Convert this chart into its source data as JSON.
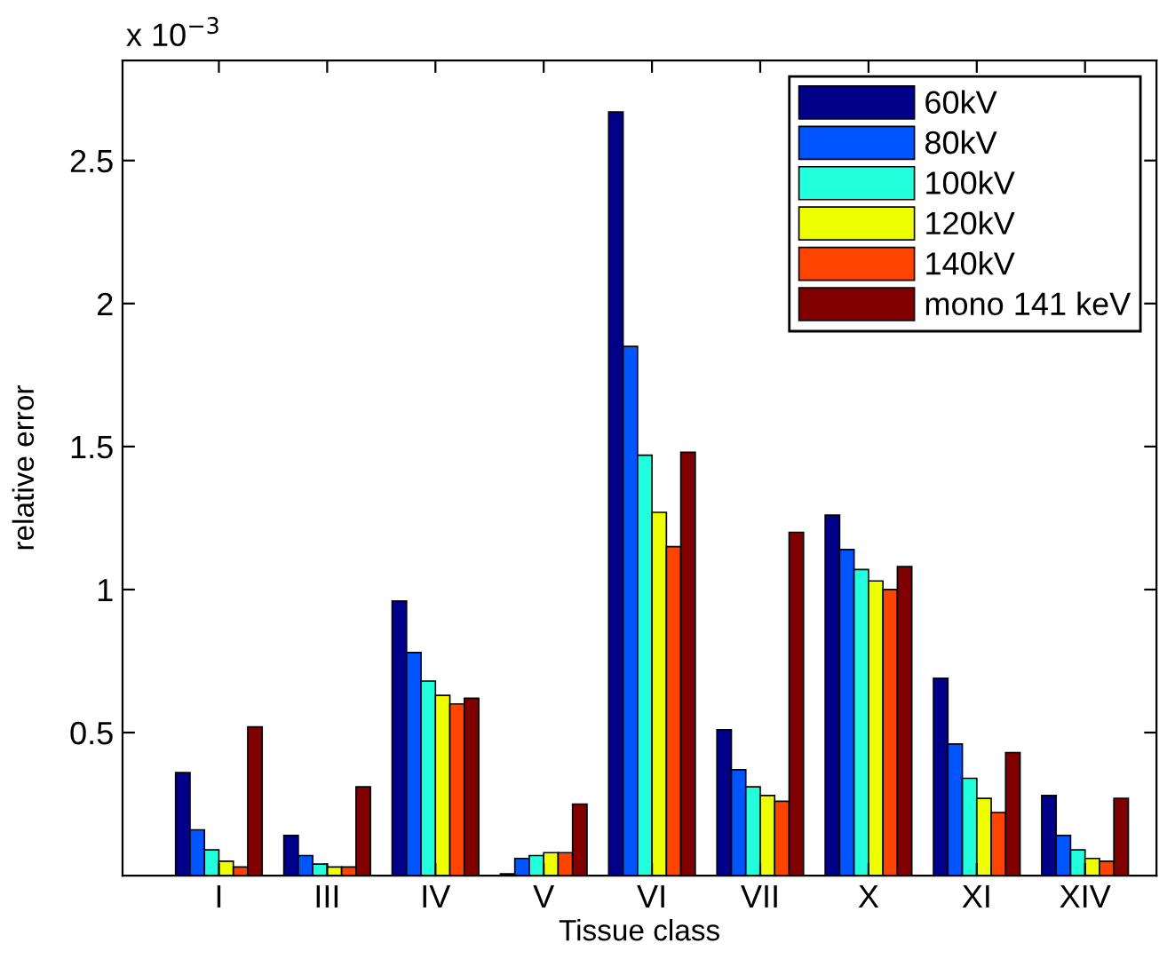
{
  "chart_data": {
    "type": "bar",
    "xlabel": "Tissue class",
    "ylabel": "relative error",
    "categories": [
      "I",
      "III",
      "IV",
      "V",
      "VI",
      "VII",
      "X",
      "XI",
      "XIV"
    ],
    "series": [
      {
        "name": "60kV",
        "color": "#000088",
        "values": [
          0.36,
          0.14,
          0.96,
          0.006,
          2.67,
          0.51,
          1.26,
          0.69,
          0.28
        ]
      },
      {
        "name": "80kV",
        "color": "#0055ff",
        "values": [
          0.16,
          0.07,
          0.78,
          0.06,
          1.85,
          0.37,
          1.14,
          0.46,
          0.14
        ]
      },
      {
        "name": "100kV",
        "color": "#22ffdd",
        "values": [
          0.09,
          0.04,
          0.68,
          0.07,
          1.47,
          0.31,
          1.07,
          0.34,
          0.09
        ]
      },
      {
        "name": "120kV",
        "color": "#eeff00",
        "values": [
          0.05,
          0.03,
          0.63,
          0.08,
          1.27,
          0.28,
          1.03,
          0.27,
          0.06
        ]
      },
      {
        "name": "140kV",
        "color": "#ff4400",
        "values": [
          0.03,
          0.03,
          0.6,
          0.08,
          1.15,
          0.26,
          1.0,
          0.22,
          0.05
        ]
      },
      {
        "name": "mono 141 keV",
        "color": "#800000",
        "values": [
          0.52,
          0.31,
          0.62,
          0.25,
          1.48,
          1.2,
          1.08,
          0.43,
          0.27
        ]
      }
    ],
    "ylim": [
      0,
      2.85
    ],
    "yticks": [
      0.5,
      1,
      1.5,
      2,
      2.5
    ],
    "annotations": [
      "x 10$^{−3}$"
    ],
    "legend": "top right",
    "grid": false
  }
}
